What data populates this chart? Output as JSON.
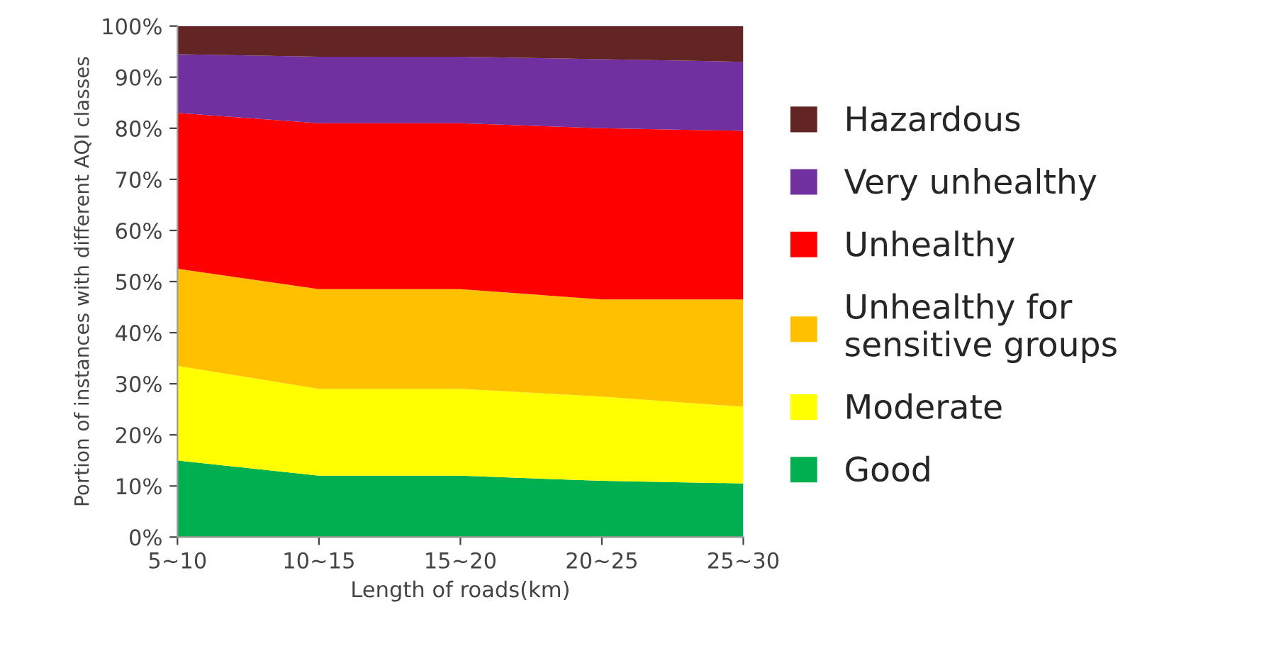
{
  "chart_data": {
    "type": "area",
    "stacked": true,
    "xlabel": "Length of roads(km)",
    "ylabel": "Portion of instances with different AQI classes",
    "categories": [
      "5~10",
      "10~15",
      "15~20",
      "20~25",
      "25~30"
    ],
    "series": [
      {
        "name": "Good",
        "color": "#00b050",
        "values": [
          15,
          12,
          12,
          11,
          10.5
        ]
      },
      {
        "name": "Moderate",
        "color": "#ffff00",
        "values": [
          18.5,
          17,
          17,
          16.5,
          15
        ]
      },
      {
        "name": "Unhealthy for sensitive groups",
        "color": "#ffc000",
        "values": [
          19,
          19.5,
          19.5,
          19,
          21
        ]
      },
      {
        "name": "Unhealthy",
        "color": "#ff0000",
        "values": [
          30.5,
          32.5,
          32.5,
          33.5,
          33
        ]
      },
      {
        "name": "Very unhealthy",
        "color": "#7030a0",
        "values": [
          11.5,
          13,
          13,
          13.5,
          13.5
        ]
      },
      {
        "name": "Hazardous",
        "color": "#632523",
        "values": [
          5.5,
          6,
          6,
          6.5,
          7
        ]
      }
    ],
    "ylim": [
      0,
      100
    ],
    "yticks": [
      {
        "value": 0,
        "label": "0%"
      },
      {
        "value": 10,
        "label": "10%"
      },
      {
        "value": 20,
        "label": "20%"
      },
      {
        "value": 30,
        "label": "30%"
      },
      {
        "value": 40,
        "label": "40%"
      },
      {
        "value": 50,
        "label": "50%"
      },
      {
        "value": 60,
        "label": "60%"
      },
      {
        "value": 70,
        "label": "70%"
      },
      {
        "value": 80,
        "label": "80%"
      },
      {
        "value": 90,
        "label": "90%"
      },
      {
        "value": 100,
        "label": "100%"
      }
    ],
    "legend": "right"
  }
}
